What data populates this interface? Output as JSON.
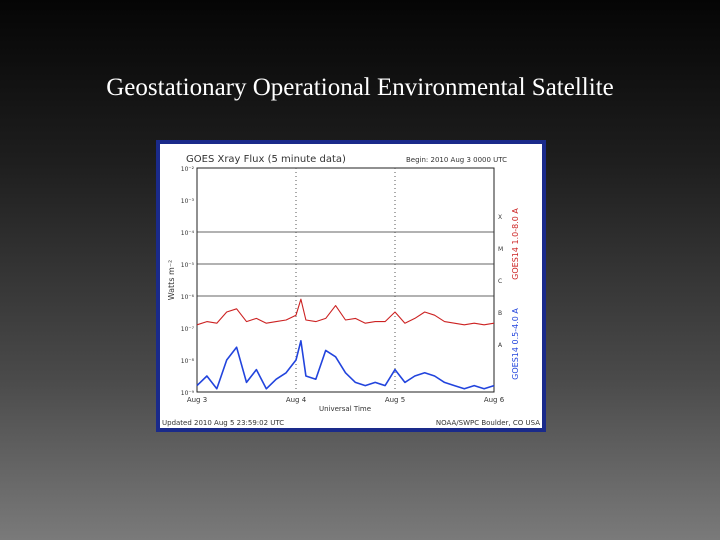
{
  "slide": {
    "title": "Geostationary Operational Environmental Satellite"
  },
  "chart_data": {
    "type": "line",
    "title": "GOES Xray Flux (5 minute data)",
    "begin_label": "Begin: 2010 Aug 3 0000 UTC",
    "ylabel": "Watts m⁻²",
    "xlabel": "Universal Time",
    "updated_label": "Updated 2010 Aug 5 23:59:02 UTC",
    "credit_label": "NOAA/SWPC Boulder, CO USA",
    "x_ticks": [
      "Aug 3",
      "Aug 4",
      "Aug 5",
      "Aug 6"
    ],
    "y_ticks": [
      "10⁻⁹",
      "10⁻⁸",
      "10⁻⁷",
      "10⁻⁶",
      "10⁻⁵",
      "10⁻⁴",
      "10⁻³",
      "10⁻²"
    ],
    "ylim_log10": [
      -9,
      -2
    ],
    "flare_classes": [
      "X",
      "M",
      "C",
      "B",
      "A"
    ],
    "right_labels": {
      "long": "GOES14 1.0-8.0 A",
      "short": "GOES14 0.5-4.0 A"
    },
    "series": [
      {
        "name": "GOES14 1.0-8.0 A",
        "color": "#cc2222",
        "x_days": [
          0,
          0.1,
          0.2,
          0.3,
          0.4,
          0.5,
          0.6,
          0.7,
          0.8,
          0.9,
          1.0,
          1.05,
          1.1,
          1.2,
          1.3,
          1.4,
          1.5,
          1.6,
          1.7,
          1.8,
          1.9,
          2.0,
          2.1,
          2.2,
          2.3,
          2.4,
          2.5,
          2.6,
          2.7,
          2.8,
          2.9,
          3.0
        ],
        "log10_flux": [
          -6.9,
          -6.8,
          -6.85,
          -6.5,
          -6.4,
          -6.8,
          -6.7,
          -6.85,
          -6.8,
          -6.75,
          -6.6,
          -6.1,
          -6.75,
          -6.8,
          -6.7,
          -6.3,
          -6.75,
          -6.7,
          -6.85,
          -6.8,
          -6.8,
          -6.5,
          -6.85,
          -6.7,
          -6.5,
          -6.6,
          -6.8,
          -6.85,
          -6.9,
          -6.85,
          -6.9,
          -6.85
        ]
      },
      {
        "name": "GOES14 0.5-4.0 A",
        "color": "#2244dd",
        "x_days": [
          0,
          0.1,
          0.2,
          0.3,
          0.4,
          0.5,
          0.6,
          0.7,
          0.8,
          0.9,
          1.0,
          1.05,
          1.1,
          1.2,
          1.3,
          1.4,
          1.5,
          1.6,
          1.7,
          1.8,
          1.9,
          2.0,
          2.1,
          2.2,
          2.3,
          2.4,
          2.5,
          2.6,
          2.7,
          2.8,
          2.9,
          3.0
        ],
        "log10_flux": [
          -8.8,
          -8.5,
          -8.9,
          -8.0,
          -7.6,
          -8.7,
          -8.3,
          -8.9,
          -8.6,
          -8.4,
          -8.0,
          -7.4,
          -8.5,
          -8.6,
          -7.7,
          -7.9,
          -8.4,
          -8.7,
          -8.8,
          -8.7,
          -8.8,
          -8.3,
          -8.7,
          -8.5,
          -8.4,
          -8.5,
          -8.7,
          -8.8,
          -8.9,
          -8.8,
          -8.9,
          -8.8
        ]
      }
    ]
  }
}
